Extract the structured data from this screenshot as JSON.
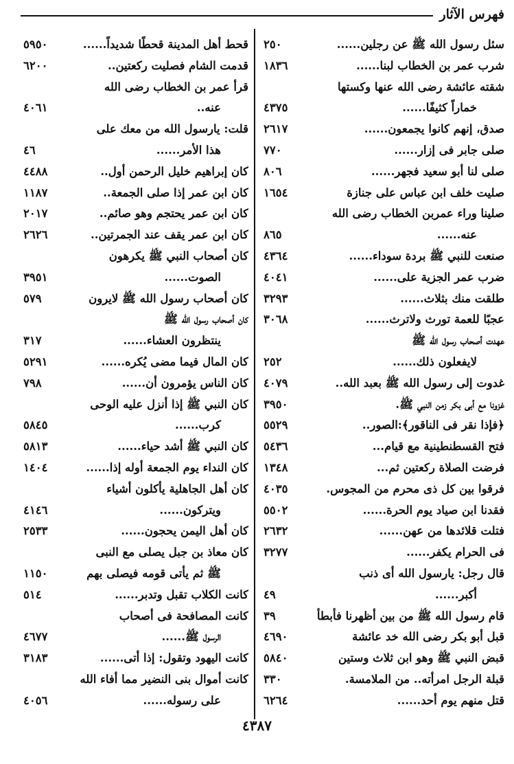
{
  "header": {
    "title": "فهرس الآثار"
  },
  "page_number": "٤٣٨٧",
  "columns": [
    {
      "entries": [
        {
          "lines": [
            "سئل رسول الله ﷺ عن رجلين......"
          ],
          "page": "٢٥٠"
        },
        {
          "lines": [
            "شرب عمر بن الخطاب لبنا......"
          ],
          "page": "١٨٣٦"
        },
        {
          "lines": [
            "شقته عائشة رضى الله عنها وكستها",
            "خماراً كثيفًا......"
          ],
          "page": "٤٣٧٥"
        },
        {
          "lines": [
            "صدق، إنهم كانوا يجمعون......"
          ],
          "page": "٢٦١٧"
        },
        {
          "lines": [
            "صلى جابر فى إزار......"
          ],
          "page": "٧٧٠"
        },
        {
          "lines": [
            "صلى لنا أبو سعيد فجهر......"
          ],
          "page": "٨٠٦"
        },
        {
          "lines": [
            "صليت خلف ابن عباس على جنازة"
          ],
          "page": "١٦٥٤"
        },
        {
          "lines": [
            "صلينا وراء عمربن الخطاب رضى الله",
            "عنه......"
          ],
          "page": "٨٦٥"
        },
        {
          "lines": [
            "صنعت للنبي ﷺ بردة سوداء......"
          ],
          "page": "٤٣٦٤"
        },
        {
          "lines": [
            "ضرب عمر الجزية على......"
          ],
          "page": "٤٠٤١"
        },
        {
          "lines": [
            "طلقت منك بثلاث......"
          ],
          "page": "٣٢٩٣"
        },
        {
          "lines": [
            "عجبًا للعمة تورث ولاترث......"
          ],
          "page": "٣٠٦٨"
        },
        {
          "lines": [
            "عهدت أصحاب رسول الله ﷺ",
            "لايفعلون ذلك......"
          ],
          "page": "٢٥٢"
        },
        {
          "lines": [
            "غدوت إلى رسول الله ﷺ بعبد الله.."
          ],
          "page": "٤٠٧٩"
        },
        {
          "lines": [
            "غزونا مع أبى بكر زمن النبي ﷺ."
          ],
          "page": "٣٩٥٠"
        },
        {
          "lines": [
            "﴿فإذا نقر فى الناقور﴾:الصور.."
          ],
          "page": "٥٥٢٩"
        },
        {
          "lines": [
            "فتح القسطنطينية مع قيام..."
          ],
          "page": "٥٤٣٦"
        },
        {
          "lines": [
            "فرضت الصلاة ركعتين ثم..."
          ],
          "page": "١٣٤٨"
        },
        {
          "lines": [
            "فرقوا بين كل ذى محرم من المجوس."
          ],
          "page": "٤٠٣٥"
        },
        {
          "lines": [
            "فقدنا ابن صياد يوم الحرة......"
          ],
          "page": "٥٥٠٢"
        },
        {
          "lines": [
            "فتلت قلائدها من عهن......"
          ],
          "page": "٢٦٣٢"
        },
        {
          "lines": [
            "فى الحرام يكفر......"
          ],
          "page": "٣٢٧٧"
        },
        {
          "lines": [
            "قال رجل: يارسول الله أى ذنب",
            "أكبر......"
          ],
          "page": "٤٩"
        },
        {
          "lines": [
            "قام رسول الله ﷺ من بين أظهرنا فأبطأ"
          ],
          "page": "٣٩"
        },
        {
          "lines": [
            "قبل أبو بكر رضى الله خد عائشة"
          ],
          "page": "٤٦٩٠"
        },
        {
          "lines": [
            "قبض النبي ﷺ وهو ابن ثلاث وستين"
          ],
          "page": "٥٨٤٠"
        },
        {
          "lines": [
            "قبلة الرجل امرأته.. من الملامسة."
          ],
          "page": "٣٣٠"
        },
        {
          "lines": [
            "قتل منهم يوم أحد......"
          ],
          "page": "٦٢٦٤"
        }
      ]
    },
    {
      "entries": [
        {
          "lines": [
            "قحط أهل المدينة قحطًا شديداً......"
          ],
          "page": "٥٩٥٠"
        },
        {
          "lines": [
            "قدمت الشام فصليت ركعتين.."
          ],
          "page": "٦٢٠٠"
        },
        {
          "lines": [
            "قرأ عمر بن الخطاب رضى الله",
            "عنه.."
          ],
          "page": "٤٠٦١"
        },
        {
          "lines": [
            "قلت: يارسول الله من معك على",
            "هذا الأمر......"
          ],
          "page": "٤٦"
        },
        {
          "lines": [
            "كان إبراهيم خليل الرحمن أول.."
          ],
          "page": "٤٤٨٨"
        },
        {
          "lines": [
            "كان ابن عمر إذا صلى الجمعة.."
          ],
          "page": "١١٨٧"
        },
        {
          "lines": [
            "كان ابن عمر يحتجم وهو صائم.."
          ],
          "page": "٢٠١٧"
        },
        {
          "lines": [
            "كان ابن عمر يقف عند الجمرتين.."
          ],
          "page": "٢٦٢٦"
        },
        {
          "lines": [
            "كان أصحاب النبي ﷺ يكرهون",
            "الصوت......"
          ],
          "page": "٣٩٥١"
        },
        {
          "lines": [
            "كان أصحاب رسول الله ﷺ لايرون"
          ],
          "page": "٥٧٩"
        },
        {
          "lines": [
            "كان أصحاب رسول الله ﷺ",
            "ينتظرون العشاء......"
          ],
          "page": "٣١٧"
        },
        {
          "lines": [
            "كان المال فيما مضى يُكره......"
          ],
          "page": "٥٢٩١"
        },
        {
          "lines": [
            "كان الناس يؤمرون أن......"
          ],
          "page": "٧٩٨"
        },
        {
          "lines": [
            "كان النبي ﷺ إذا أنزل عليه الوحى",
            "كرب......"
          ],
          "page": "٥٨٤٥"
        },
        {
          "lines": [
            "كان النبي ﷺ أشد حياء......"
          ],
          "page": "٥٨١٣"
        },
        {
          "lines": [
            "كان النداء يوم الجمعة أوله إذا......"
          ],
          "page": "١٤٠٤"
        },
        {
          "lines": [
            "كان أهل الجاهلية يأكلون أشياء",
            "ويتركون......"
          ],
          "page": "٤١٤٦"
        },
        {
          "lines": [
            "كان أهل اليمن يحجون......"
          ],
          "page": "٢٥٣٣"
        },
        {
          "lines": [
            "كان معاذ بن جبل يصلى مع النبى",
            "ﷺ ثم يأتى قومه فيصلى بهم"
          ],
          "page": "١١٥٠"
        },
        {
          "lines": [
            "كانت الكلاب تقبل وتدبر......"
          ],
          "page": "٥١٤"
        },
        {
          "lines": [
            "كانت المصافحة فى أصحاب",
            "الرسول ﷺ......"
          ],
          "page": "٤٦٧٧"
        },
        {
          "lines": [
            "كانت اليهود وتقول: إذا أتى......"
          ],
          "page": "٣١٨٣"
        },
        {
          "lines": [
            "كانت أموال بنى النضير مما أفاء الله",
            "على رسوله......"
          ],
          "page": "٤٠٥٦"
        }
      ]
    }
  ]
}
